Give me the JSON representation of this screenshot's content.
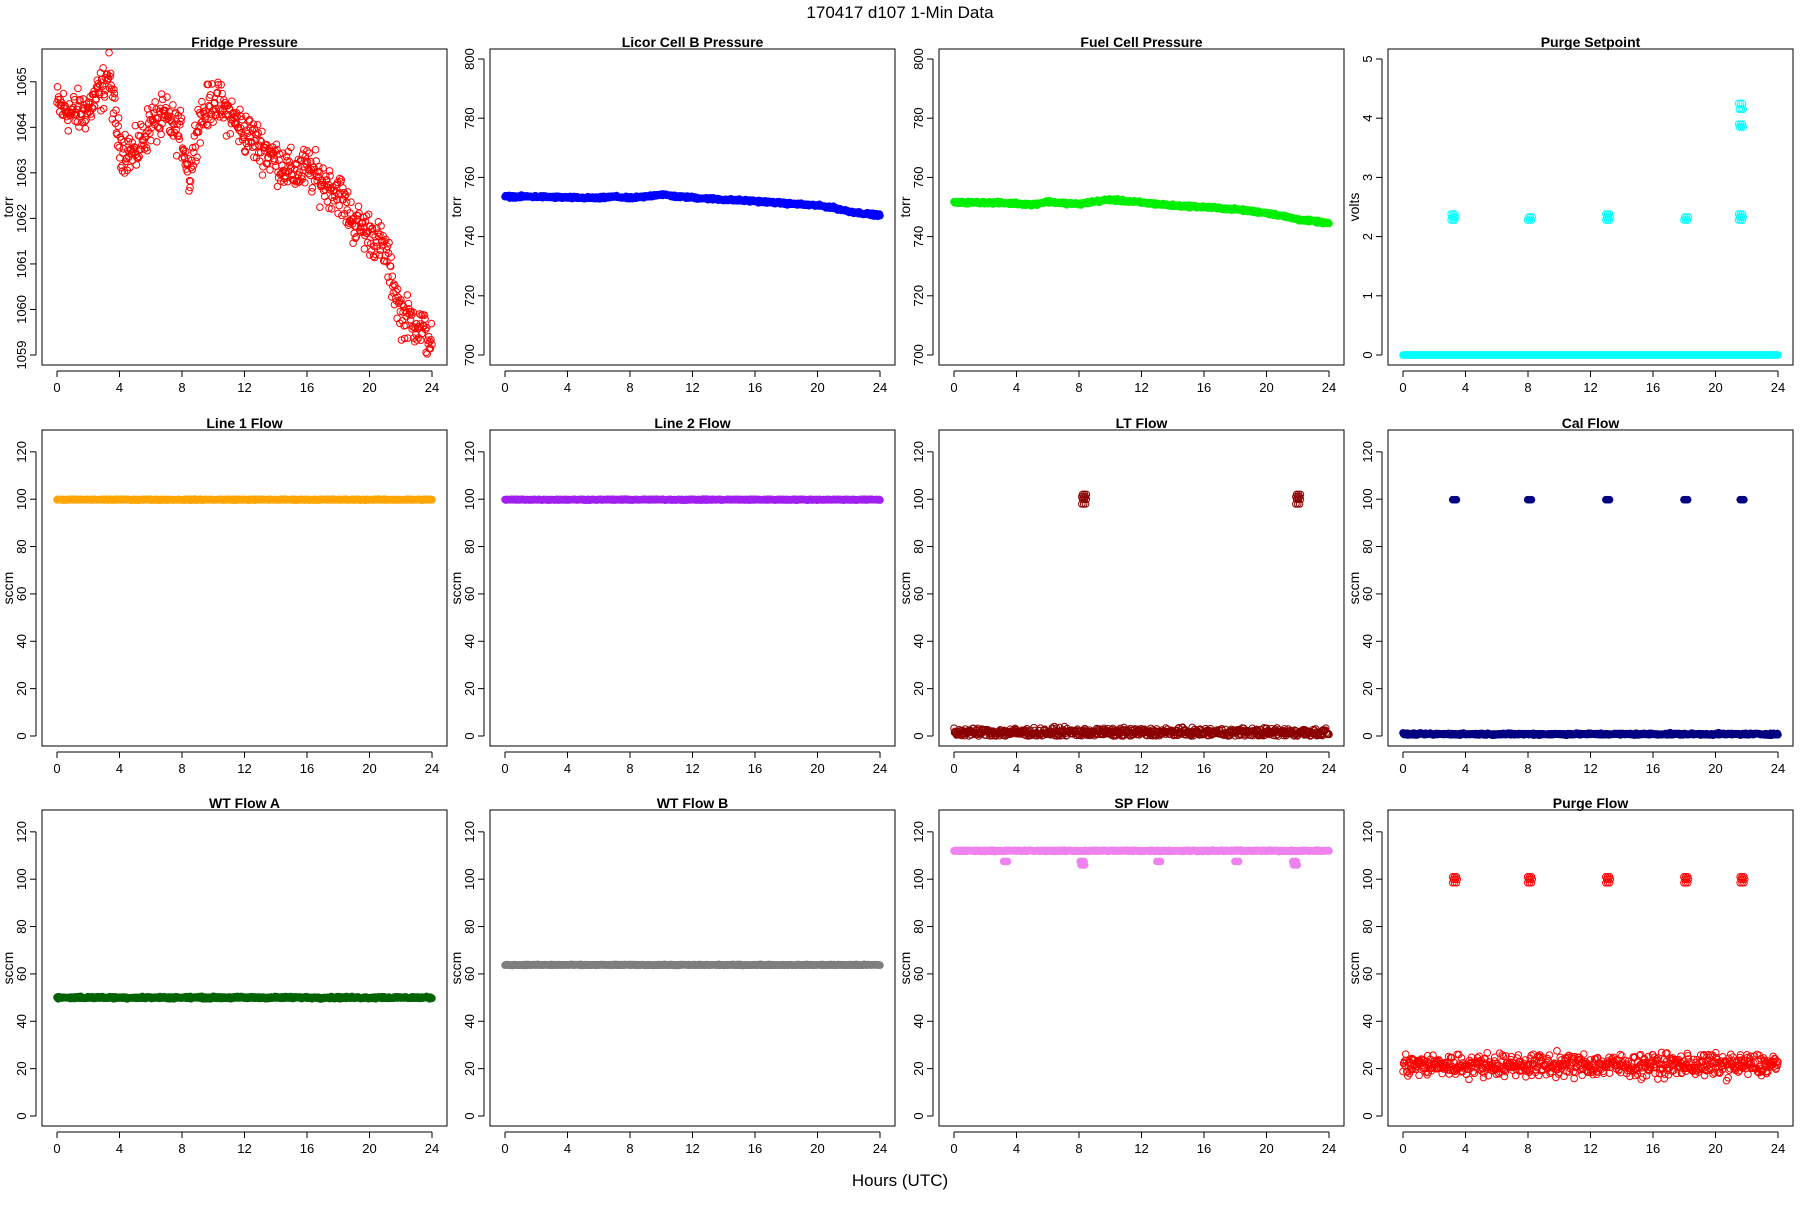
{
  "header": {
    "title": "170417    d107    1-Min Data"
  },
  "xaxis_title": "Hours (UTC)",
  "colors": {
    "fridge": "#ff0000",
    "licor": "#0000ff",
    "fuel": "#00ee00",
    "purge_setpoint": "#00ffff",
    "line1": "#ffa500",
    "line2": "#a020f0",
    "lt": "#8b0000",
    "cal": "#000080",
    "wta": "#006400",
    "wtb": "#7f7f7f",
    "sp": "#ee82ee",
    "purge_flow": "#ff0000"
  },
  "chart_data": [
    {
      "type": "scatter",
      "title": "Fridge Pressure",
      "xlabel": "",
      "ylabel": "torr",
      "xlim": [
        0,
        24
      ],
      "ylim": [
        1059,
        1065.5
      ],
      "xticks": [
        "0",
        "4",
        "8",
        "12",
        "16",
        "20",
        "24"
      ],
      "yticks": [
        "1059",
        "1060",
        "1061",
        "1062",
        "1063",
        "1064",
        "1065"
      ],
      "color_key": "fridge",
      "noise": 0.35,
      "marker": "hollow",
      "series": [
        {
          "x": [
            0,
            1,
            2,
            3,
            3.3,
            4,
            5,
            6,
            7,
            8,
            8.5,
            9,
            10,
            11,
            12,
            13,
            14,
            15,
            16,
            17,
            18,
            19,
            20,
            21,
            21.5,
            22,
            23,
            24
          ],
          "values": [
            1064.5,
            1064.3,
            1064.4,
            1064.9,
            1065.2,
            1063.6,
            1063.4,
            1064.1,
            1064.2,
            1063.8,
            1062.9,
            1064.1,
            1064.6,
            1064.3,
            1063.9,
            1063.6,
            1063.3,
            1063.0,
            1063.1,
            1062.8,
            1062.6,
            1061.9,
            1061.7,
            1061.3,
            1060.6,
            1059.9,
            1059.7,
            1059.3
          ]
        }
      ]
    },
    {
      "type": "scatter",
      "title": "Licor Cell B Pressure",
      "xlabel": "",
      "ylabel": "torr",
      "xlim": [
        0,
        24
      ],
      "ylim": [
        700,
        800
      ],
      "xticks": [
        "0",
        "4",
        "8",
        "12",
        "16",
        "20",
        "24"
      ],
      "yticks": [
        "700",
        "720",
        "740",
        "760",
        "780",
        "800"
      ],
      "color_key": "licor",
      "noise": 0.3,
      "marker": "filled",
      "series": [
        {
          "x": [
            0,
            2,
            4,
            6,
            7,
            8,
            9,
            10,
            11,
            12,
            14,
            16,
            18,
            20,
            21,
            22,
            23,
            24
          ],
          "values": [
            753.5,
            753.5,
            753.2,
            753,
            753.5,
            753,
            753.5,
            754.3,
            753.5,
            753.2,
            752.5,
            752,
            751.2,
            750.5,
            749.8,
            748.5,
            747.8,
            747.2
          ]
        }
      ]
    },
    {
      "type": "scatter",
      "title": "Fuel Cell Pressure",
      "xlabel": "",
      "ylabel": "torr",
      "xlim": [
        0,
        24
      ],
      "ylim": [
        700,
        800
      ],
      "xticks": [
        "0",
        "4",
        "8",
        "12",
        "16",
        "20",
        "24"
      ],
      "yticks": [
        "700",
        "720",
        "740",
        "760",
        "780",
        "800"
      ],
      "color_key": "fuel",
      "noise": 0.3,
      "marker": "filled",
      "series": [
        {
          "x": [
            0,
            2,
            4,
            5,
            6,
            7,
            8,
            9,
            10,
            11,
            12,
            14,
            16,
            18,
            20,
            21,
            22,
            23,
            24
          ],
          "values": [
            751.5,
            751.5,
            751.2,
            750.8,
            751.8,
            751.3,
            751,
            751.8,
            752.5,
            752,
            751.5,
            750.5,
            750,
            749.2,
            748,
            747,
            745.8,
            745.2,
            744.5
          ]
        }
      ]
    },
    {
      "type": "scatter",
      "title": "Purge Setpoint",
      "xlabel": "",
      "ylabel": "volts",
      "xlim": [
        0,
        24
      ],
      "ylim": [
        0,
        5
      ],
      "xticks": [
        "0",
        "4",
        "8",
        "12",
        "16",
        "20",
        "24"
      ],
      "yticks": [
        "0",
        "1",
        "2",
        "3",
        "4",
        "5"
      ],
      "color_key": "purge_setpoint",
      "noise": 0.0,
      "marker": "hollow",
      "series": [
        {
          "x": [
            0,
            24
          ],
          "values": [
            0,
            0
          ]
        }
      ],
      "spikes": [
        {
          "x": 3.2,
          "values": [
            2.28,
            2.33,
            2.38
          ]
        },
        {
          "x": 8.1,
          "values": [
            2.28,
            2.33
          ]
        },
        {
          "x": 13.1,
          "values": [
            2.28,
            2.33,
            2.38
          ]
        },
        {
          "x": 18.1,
          "values": [
            2.28,
            2.33
          ]
        },
        {
          "x": 21.6,
          "values": [
            2.28,
            2.33,
            2.38,
            3.85,
            3.9,
            4.15,
            4.25
          ]
        }
      ]
    },
    {
      "type": "scatter",
      "title": "Line 1 Flow",
      "xlabel": "",
      "ylabel": "sccm",
      "xlim": [
        0,
        24
      ],
      "ylim": [
        0,
        125
      ],
      "xticks": [
        "0",
        "4",
        "8",
        "12",
        "16",
        "20",
        "24"
      ],
      "yticks": [
        "0",
        "20",
        "40",
        "60",
        "80",
        "100",
        "120"
      ],
      "color_key": "line1",
      "noise": 0.15,
      "marker": "filled",
      "series": [
        {
          "x": [
            0,
            24
          ],
          "values": [
            99.8,
            99.8
          ]
        }
      ]
    },
    {
      "type": "scatter",
      "title": "Line 2 Flow",
      "xlabel": "",
      "ylabel": "sccm",
      "xlim": [
        0,
        24
      ],
      "ylim": [
        0,
        125
      ],
      "xticks": [
        "0",
        "4",
        "8",
        "12",
        "16",
        "20",
        "24"
      ],
      "yticks": [
        "0",
        "20",
        "40",
        "60",
        "80",
        "100",
        "120"
      ],
      "color_key": "line2",
      "noise": 0.15,
      "marker": "filled",
      "series": [
        {
          "x": [
            0,
            24
          ],
          "values": [
            99.8,
            99.8
          ]
        }
      ]
    },
    {
      "type": "scatter",
      "title": "LT Flow",
      "xlabel": "",
      "ylabel": "sccm",
      "xlim": [
        0,
        24
      ],
      "ylim": [
        0,
        125
      ],
      "xticks": [
        "0",
        "4",
        "8",
        "12",
        "16",
        "20",
        "24"
      ],
      "yticks": [
        "0",
        "20",
        "40",
        "60",
        "80",
        "100",
        "120"
      ],
      "color_key": "lt",
      "noise": 1.4,
      "marker": "hollow",
      "series": [
        {
          "x": [
            0,
            24
          ],
          "values": [
            1.5,
            1.5
          ]
        }
      ],
      "spikes": [
        {
          "x": 8.3,
          "values": [
            98,
            100,
            101,
            102
          ]
        },
        {
          "x": 22.0,
          "values": [
            98,
            100,
            101,
            102
          ]
        }
      ]
    },
    {
      "type": "scatter",
      "title": "Cal Flow",
      "xlabel": "",
      "ylabel": "sccm",
      "xlim": [
        0,
        24
      ],
      "ylim": [
        0,
        125
      ],
      "xticks": [
        "0",
        "4",
        "8",
        "12",
        "16",
        "20",
        "24"
      ],
      "yticks": [
        "0",
        "20",
        "40",
        "60",
        "80",
        "100",
        "120"
      ],
      "color_key": "cal",
      "noise": 0.3,
      "marker": "filled",
      "series": [
        {
          "x": [
            0,
            24
          ],
          "values": [
            0.8,
            0.8
          ]
        }
      ],
      "spikes": [
        {
          "x": 3.3,
          "values": [
            99.8
          ]
        },
        {
          "x": 8.1,
          "values": [
            99.8
          ]
        },
        {
          "x": 13.1,
          "values": [
            99.8
          ]
        },
        {
          "x": 18.1,
          "values": [
            99.8
          ]
        },
        {
          "x": 21.7,
          "values": [
            99.8
          ]
        }
      ]
    },
    {
      "type": "scatter",
      "title": "WT Flow A",
      "xlabel": "",
      "ylabel": "sccm",
      "xlim": [
        0,
        24
      ],
      "ylim": [
        0,
        125
      ],
      "xticks": [
        "0",
        "4",
        "8",
        "12",
        "16",
        "20",
        "24"
      ],
      "yticks": [
        "0",
        "20",
        "40",
        "60",
        "80",
        "100",
        "120"
      ],
      "color_key": "wta",
      "noise": 0.35,
      "marker": "filled",
      "series": [
        {
          "x": [
            0,
            24
          ],
          "values": [
            50,
            50
          ]
        }
      ]
    },
    {
      "type": "scatter",
      "title": "WT Flow B",
      "xlabel": "",
      "ylabel": "sccm",
      "xlim": [
        0,
        24
      ],
      "ylim": [
        0,
        125
      ],
      "xticks": [
        "0",
        "4",
        "8",
        "12",
        "16",
        "20",
        "24"
      ],
      "yticks": [
        "0",
        "20",
        "40",
        "60",
        "80",
        "100",
        "120"
      ],
      "color_key": "wtb",
      "noise": 0.15,
      "marker": "filled",
      "series": [
        {
          "x": [
            0,
            24
          ],
          "values": [
            63.8,
            63.8
          ]
        }
      ]
    },
    {
      "type": "scatter",
      "title": "SP Flow",
      "xlabel": "",
      "ylabel": "sccm",
      "xlim": [
        0,
        24
      ],
      "ylim": [
        0,
        125
      ],
      "xticks": [
        "0",
        "4",
        "8",
        "12",
        "16",
        "20",
        "24"
      ],
      "yticks": [
        "0",
        "20",
        "40",
        "60",
        "80",
        "100",
        "120"
      ],
      "color_key": "sp",
      "noise": 0.2,
      "marker": "filled",
      "series": [
        {
          "x": [
            0,
            24
          ],
          "values": [
            112,
            112
          ]
        }
      ],
      "spikes": [
        {
          "x": 3.3,
          "values": [
            107.5
          ]
        },
        {
          "x": 8.2,
          "values": [
            107.5,
            106
          ]
        },
        {
          "x": 13.1,
          "values": [
            107.5
          ]
        },
        {
          "x": 18.1,
          "values": [
            107.5
          ]
        },
        {
          "x": 21.8,
          "values": [
            107.5,
            106
          ]
        }
      ]
    },
    {
      "type": "scatter",
      "title": "Purge Flow",
      "xlabel": "",
      "ylabel": "sccm",
      "xlim": [
        0,
        24
      ],
      "ylim": [
        0,
        125
      ],
      "xticks": [
        "0",
        "4",
        "8",
        "12",
        "16",
        "20",
        "24"
      ],
      "yticks": [
        "0",
        "20",
        "40",
        "60",
        "80",
        "100",
        "120"
      ],
      "color_key": "purge_flow",
      "noise": 3.5,
      "marker": "hollow",
      "series": [
        {
          "x": [
            0,
            24
          ],
          "values": [
            21.5,
            21.5
          ]
        }
      ],
      "spikes": [
        {
          "x": 3.3,
          "values": [
            98.5,
            100,
            101
          ]
        },
        {
          "x": 8.1,
          "values": [
            98.5,
            100,
            101
          ]
        },
        {
          "x": 13.1,
          "values": [
            98.5,
            100,
            101
          ]
        },
        {
          "x": 18.1,
          "values": [
            98.5,
            100,
            101
          ]
        },
        {
          "x": 21.7,
          "values": [
            98.5,
            100,
            101
          ]
        }
      ]
    }
  ]
}
